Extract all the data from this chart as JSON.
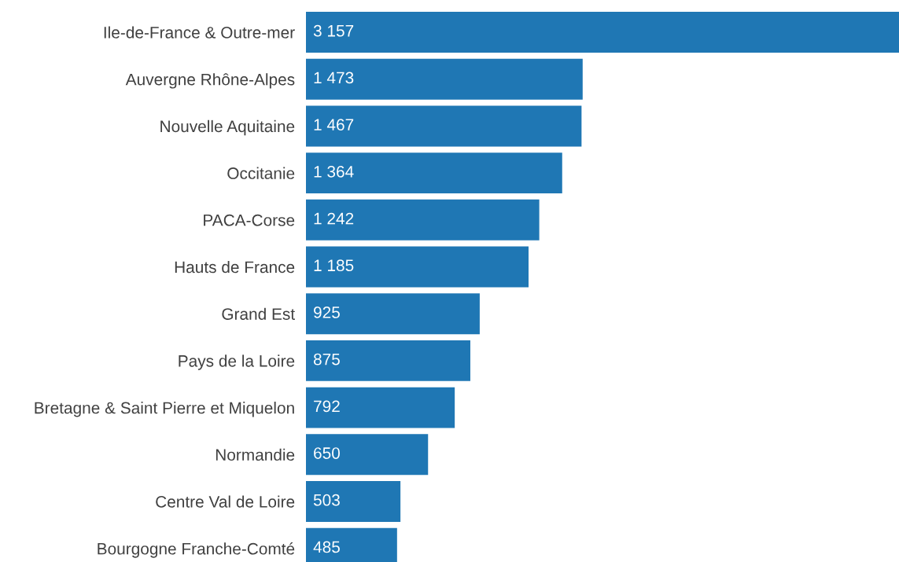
{
  "chart_data": {
    "type": "bar",
    "orientation": "horizontal",
    "categories": [
      "Ile-de-France & Outre-mer",
      "Auvergne Rhône-Alpes",
      "Nouvelle Aquitaine",
      "Occitanie",
      "PACA-Corse",
      "Hauts de France",
      "Grand Est",
      "Pays de la Loire",
      "Bretagne & Saint Pierre et Miquelon",
      "Normandie",
      "Centre Val de Loire",
      "Bourgogne Franche-Comté"
    ],
    "values": [
      3157,
      1473,
      1467,
      1364,
      1242,
      1185,
      925,
      875,
      792,
      650,
      503,
      485
    ],
    "value_labels": [
      "3 157",
      "1 473",
      "1 467",
      "1 364",
      "1 242",
      "1 185",
      "925",
      "875",
      "792",
      "650",
      "503",
      "485"
    ],
    "color": "#1f77b4",
    "tick_labels": "y",
    "grid": false,
    "legend": false
  }
}
